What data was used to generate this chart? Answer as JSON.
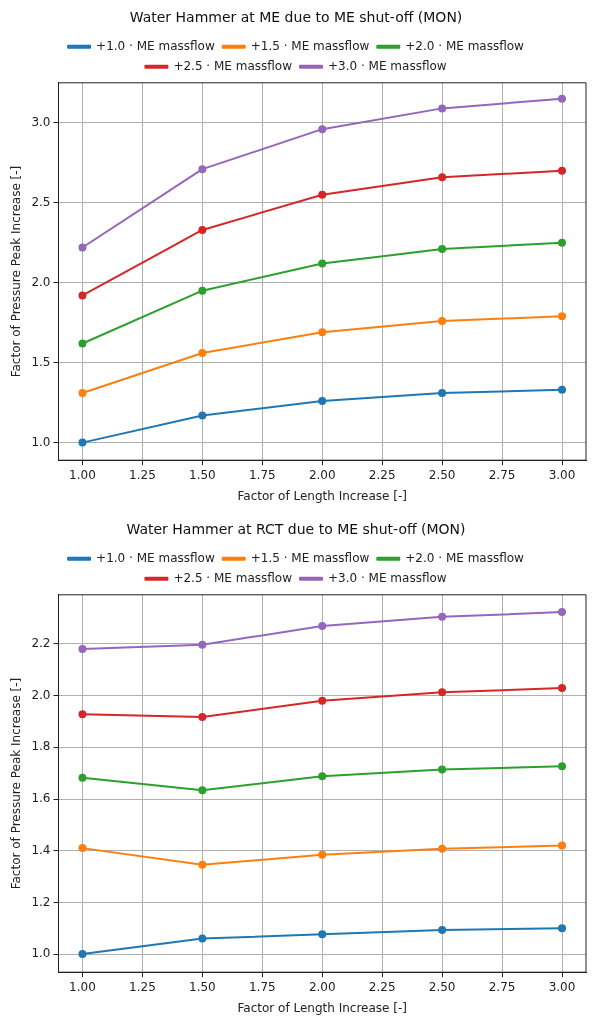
{
  "chart_data": [
    {
      "type": "line",
      "title": "Water Hammer at ME due to ME shut-off (MON)",
      "xlabel": "Factor of Length Increase [-]",
      "ylabel": "Factor of Pressure Peak Increase [-]",
      "x": [
        1.0,
        1.5,
        2.0,
        2.5,
        3.0
      ],
      "series": [
        {
          "name": "+1.0 · ME massflow",
          "color": "#1f77b4",
          "values": [
            1.0,
            1.17,
            1.26,
            1.31,
            1.33
          ]
        },
        {
          "name": "+1.5 · ME massflow",
          "color": "#ff7f0e",
          "values": [
            1.31,
            1.56,
            1.69,
            1.76,
            1.79
          ]
        },
        {
          "name": "+2.0 · ME massflow",
          "color": "#2ca02c",
          "values": [
            1.62,
            1.95,
            2.12,
            2.21,
            2.25
          ]
        },
        {
          "name": "+2.5 · ME massflow",
          "color": "#d62728",
          "values": [
            1.92,
            2.33,
            2.55,
            2.66,
            2.7
          ]
        },
        {
          "name": "+3.0 · ME massflow",
          "color": "#9467bd",
          "values": [
            2.22,
            2.71,
            2.96,
            3.09,
            3.15
          ]
        }
      ],
      "xlim": [
        0.9,
        3.1
      ],
      "ylim": [
        0.89,
        3.25
      ],
      "xticks": [
        {
          "value": 1.0,
          "label": "1.00"
        },
        {
          "value": 1.25,
          "label": "1.25"
        },
        {
          "value": 1.5,
          "label": "1.50"
        },
        {
          "value": 1.75,
          "label": "1.75"
        },
        {
          "value": 2.0,
          "label": "2.00"
        },
        {
          "value": 2.25,
          "label": "2.25"
        },
        {
          "value": 2.5,
          "label": "2.50"
        },
        {
          "value": 2.75,
          "label": "2.75"
        },
        {
          "value": 3.0,
          "label": "3.00"
        }
      ],
      "yticks": [
        {
          "value": 1.0,
          "label": "1.0"
        },
        {
          "value": 1.5,
          "label": "1.5"
        },
        {
          "value": 2.0,
          "label": "2.0"
        },
        {
          "value": 2.5,
          "label": "2.5"
        },
        {
          "value": 3.0,
          "label": "3.0"
        }
      ],
      "grid": true,
      "legend": "top",
      "marker": "circle",
      "line_style": "solid"
    },
    {
      "type": "line",
      "title": "Water Hammer at RCT due to ME shut-off (MON)",
      "xlabel": "Factor of Length Increase [-]",
      "ylabel": "Factor of Pressure Peak Increase [-]",
      "x": [
        1.0,
        1.5,
        2.0,
        2.5,
        3.0
      ],
      "series": [
        {
          "name": "+1.0 · ME massflow",
          "color": "#1f77b4",
          "values": [
            1.0,
            1.06,
            1.077,
            1.093,
            1.1
          ]
        },
        {
          "name": "+1.5 · ME massflow",
          "color": "#ff7f0e",
          "values": [
            1.41,
            1.346,
            1.384,
            1.408,
            1.42
          ]
        },
        {
          "name": "+2.0 · ME massflow",
          "color": "#2ca02c",
          "values": [
            1.682,
            1.634,
            1.688,
            1.714,
            1.727
          ]
        },
        {
          "name": "+2.5 · ME massflow",
          "color": "#d62728",
          "values": [
            1.928,
            1.917,
            1.98,
            2.013,
            2.029
          ]
        },
        {
          "name": "+3.0 · ME massflow",
          "color": "#9467bd",
          "values": [
            2.18,
            2.197,
            2.269,
            2.305,
            2.323
          ]
        }
      ],
      "xlim": [
        0.9,
        3.1
      ],
      "ylim": [
        0.93,
        2.39
      ],
      "xticks": [
        {
          "value": 1.0,
          "label": "1.00"
        },
        {
          "value": 1.25,
          "label": "1.25"
        },
        {
          "value": 1.5,
          "label": "1.50"
        },
        {
          "value": 1.75,
          "label": "1.75"
        },
        {
          "value": 2.0,
          "label": "2.00"
        },
        {
          "value": 2.25,
          "label": "2.25"
        },
        {
          "value": 2.5,
          "label": "2.50"
        },
        {
          "value": 2.75,
          "label": "2.75"
        },
        {
          "value": 3.0,
          "label": "3.00"
        }
      ],
      "yticks": [
        {
          "value": 1.0,
          "label": "1.0"
        },
        {
          "value": 1.2,
          "label": "1.2"
        },
        {
          "value": 1.4,
          "label": "1.4"
        },
        {
          "value": 1.6,
          "label": "1.6"
        },
        {
          "value": 1.8,
          "label": "1.8"
        },
        {
          "value": 2.0,
          "label": "2.0"
        },
        {
          "value": 2.2,
          "label": "2.2"
        }
      ],
      "grid": true,
      "legend": "top",
      "marker": "circle",
      "line_style": "solid"
    }
  ]
}
